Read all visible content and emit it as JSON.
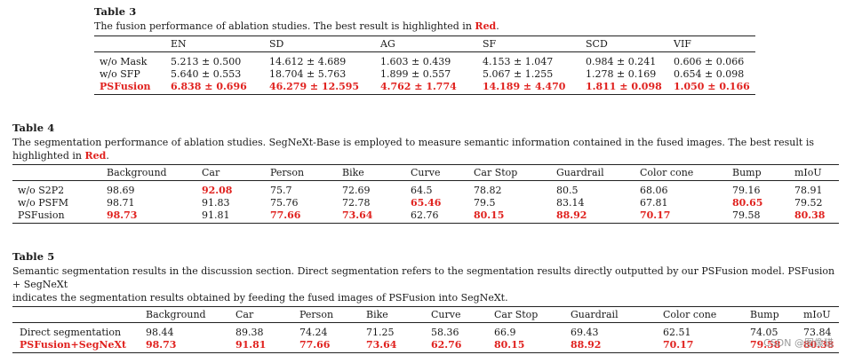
{
  "table3": {
    "title": "Table 3",
    "caption_pre": "The fusion performance of ablation studies. The best result is highlighted in ",
    "caption_red": "Red",
    "caption_post": ".",
    "columns": [
      "",
      "EN",
      "SD",
      "AG",
      "SF",
      "SCD",
      "VIF"
    ],
    "rows": [
      {
        "label": "w/o Mask",
        "cells": [
          "5.213 ± 0.500",
          "14.612 ± 4.689",
          "1.603 ± 0.439",
          "4.153 ± 1.047",
          "0.984 ± 0.241",
          "0.606 ± 0.066"
        ],
        "best": [
          false,
          false,
          false,
          false,
          false,
          false
        ]
      },
      {
        "label": "w/o SFP",
        "cells": [
          "5.640 ± 0.553",
          "18.704 ± 5.763",
          "1.899 ± 0.557",
          "5.067 ± 1.255",
          "1.278 ± 0.169",
          "0.654 ± 0.098"
        ],
        "best": [
          false,
          false,
          false,
          false,
          false,
          false
        ]
      },
      {
        "label": "PSFusion",
        "cells": [
          "6.838 ± 0.696",
          "46.279 ± 12.595",
          "4.762 ± 1.774",
          "14.189 ± 4.470",
          "1.811 ± 0.098",
          "1.050 ± 0.166"
        ],
        "best": [
          true,
          true,
          true,
          true,
          true,
          true
        ],
        "label_red": true
      }
    ]
  },
  "table4": {
    "title": "Table 4",
    "caption_pre": "The segmentation performance of ablation studies. SegNeXt-Base is employed to measure semantic information contained in the fused images. The best result is highlighted in ",
    "caption_red": "Red",
    "caption_post": ".",
    "columns": [
      "",
      "Background",
      "Car",
      "Person",
      "Bike",
      "Curve",
      "Car Stop",
      "Guardrail",
      "Color cone",
      "Bump",
      "mIoU"
    ],
    "rows": [
      {
        "label": "w/o S2P2",
        "cells": [
          "98.69",
          "92.08",
          "75.7",
          "72.69",
          "64.5",
          "78.82",
          "80.5",
          "68.06",
          "79.16",
          "78.91"
        ],
        "best": [
          false,
          true,
          false,
          false,
          false,
          false,
          false,
          false,
          false,
          false
        ]
      },
      {
        "label": "w/o PSFM",
        "cells": [
          "98.71",
          "91.83",
          "75.76",
          "72.78",
          "65.46",
          "79.5",
          "83.14",
          "67.81",
          "80.65",
          "79.52"
        ],
        "best": [
          false,
          false,
          false,
          false,
          true,
          false,
          false,
          false,
          true,
          false
        ]
      },
      {
        "label": "PSFusion",
        "cells": [
          "98.73",
          "91.81",
          "77.66",
          "73.64",
          "62.76",
          "80.15",
          "88.92",
          "70.17",
          "79.58",
          "80.38"
        ],
        "best": [
          true,
          false,
          true,
          true,
          false,
          true,
          true,
          true,
          false,
          true
        ]
      }
    ]
  },
  "table5": {
    "title": "Table 5",
    "caption_line1": "Semantic segmentation results in the discussion section. Direct segmentation refers to the segmentation results directly outputted by our PSFusion model. PSFusion + SegNeXt",
    "caption_line2": "indicates the segmentation results obtained by feeding the fused images of PSFusion into SegNeXt.",
    "columns": [
      "",
      "Background",
      "Car",
      "Person",
      "Bike",
      "Curve",
      "Car Stop",
      "Guardrail",
      "Color cone",
      "Bump",
      "mIoU"
    ],
    "rows": [
      {
        "label": "Direct segmentation",
        "cells": [
          "98.44",
          "89.38",
          "74.24",
          "71.25",
          "58.36",
          "66.9",
          "69.43",
          "62.51",
          "74.05",
          "73.84"
        ],
        "best": [
          false,
          false,
          false,
          false,
          false,
          false,
          false,
          false,
          false,
          false
        ]
      },
      {
        "label": "PSFusion+SegNeXt",
        "cells": [
          "98.73",
          "91.81",
          "77.66",
          "73.64",
          "62.76",
          "80.15",
          "88.92",
          "70.17",
          "79.58",
          "80.38"
        ],
        "best": [
          true,
          true,
          true,
          true,
          true,
          true,
          true,
          true,
          true,
          true
        ],
        "label_red": true
      }
    ]
  },
  "watermark": "CSDN @图像猎"
}
